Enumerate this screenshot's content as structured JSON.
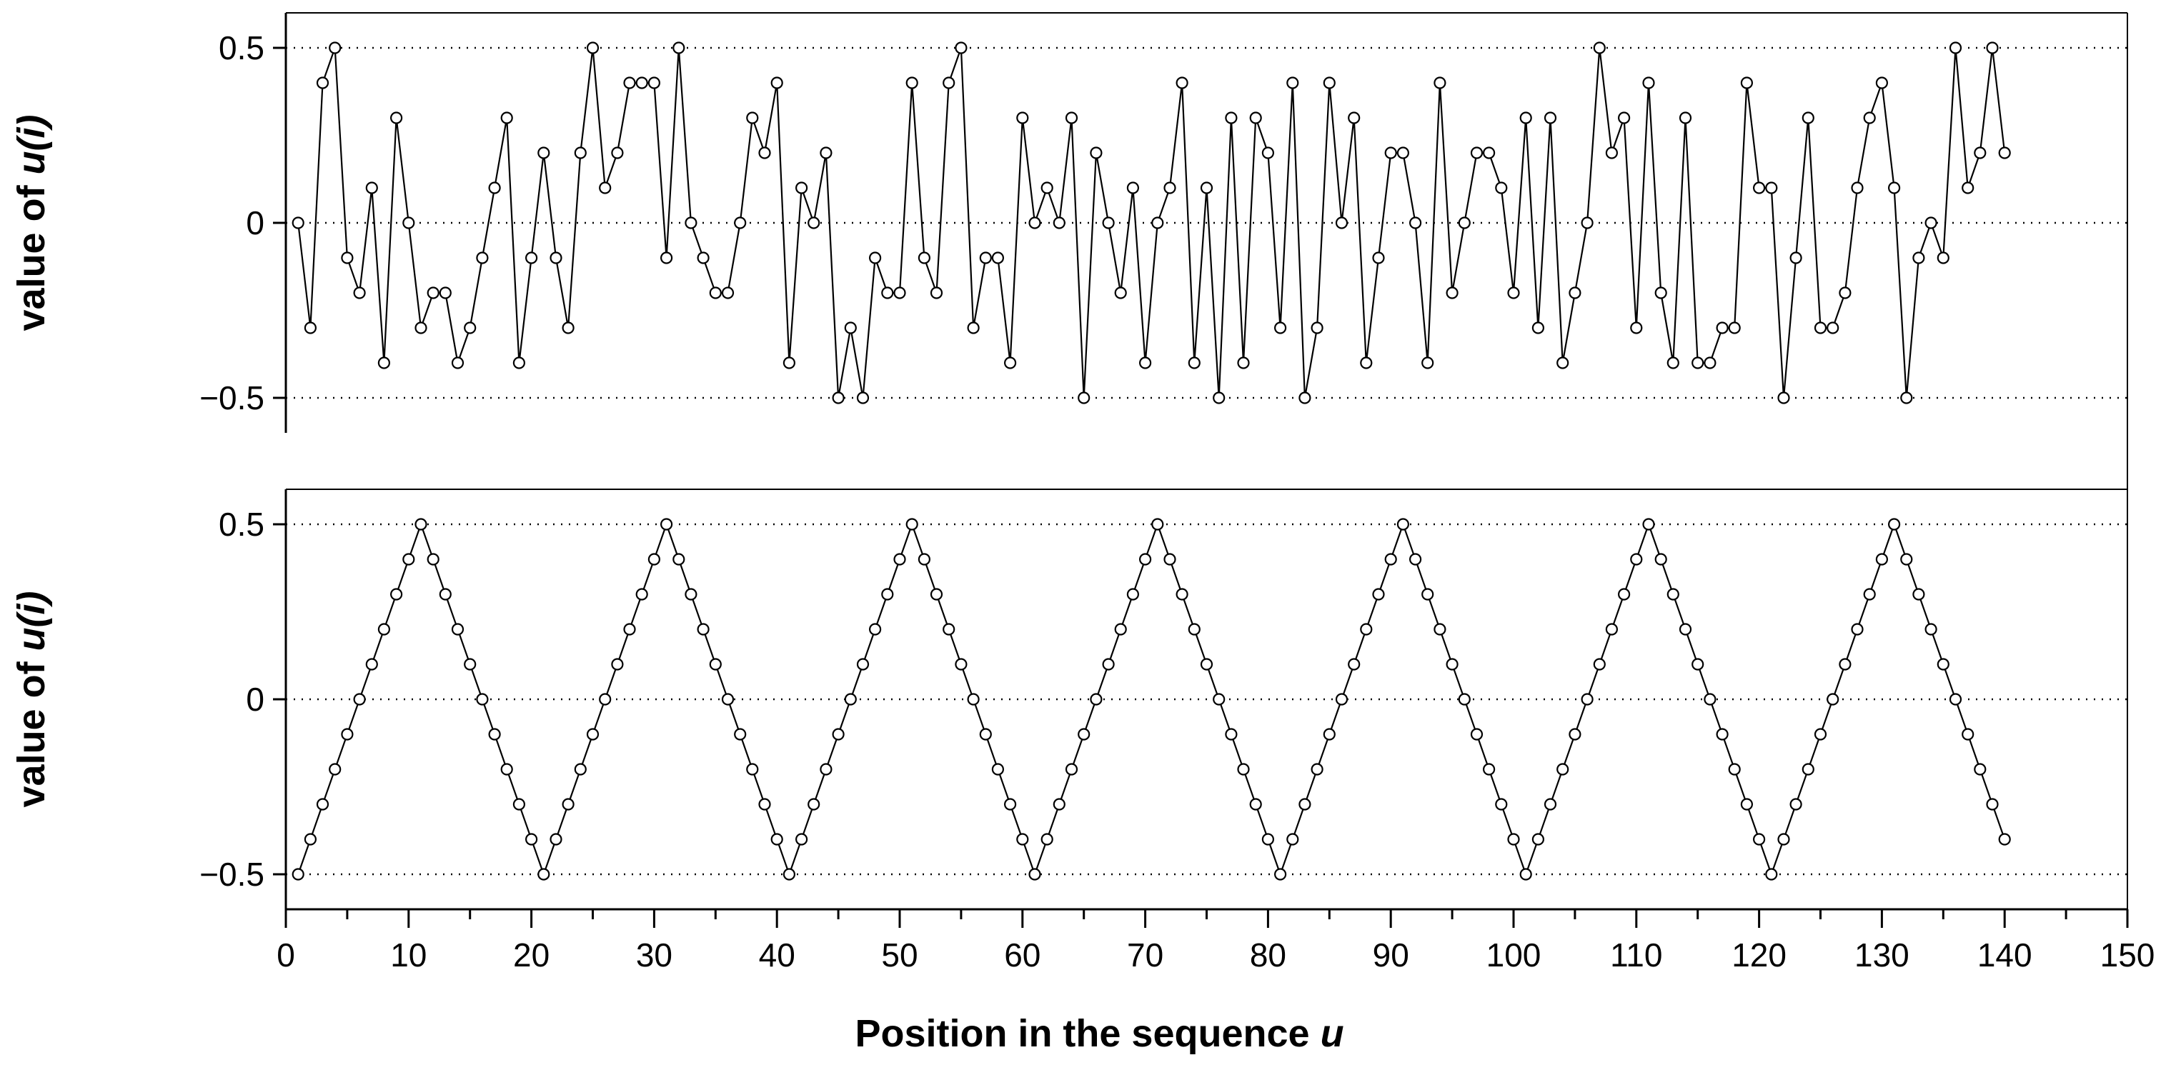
{
  "chart_data": [
    {
      "type": "line",
      "ylabel_prefix": "value of ",
      "ylabel_var": "u(i)",
      "ylim": [
        -0.6,
        0.6
      ],
      "yticks": [
        -0.5,
        0,
        0.5
      ],
      "ytick_labels": [
        "−0.5",
        "0",
        "0.5"
      ],
      "grid": "dotted horizontal at y ticks",
      "x": [
        1,
        2,
        3,
        4,
        5,
        6,
        7,
        8,
        9,
        10,
        11,
        12,
        13,
        14,
        15,
        16,
        17,
        18,
        19,
        20,
        21,
        22,
        23,
        24,
        25,
        26,
        27,
        28,
        29,
        30,
        31,
        32,
        33,
        34,
        35,
        36,
        37,
        38,
        39,
        40,
        41,
        42,
        43,
        44,
        45,
        46,
        47,
        48,
        49,
        50,
        51,
        52,
        53,
        54,
        55,
        56,
        57,
        58,
        59,
        60,
        61,
        62,
        63,
        64,
        65,
        66,
        67,
        68,
        69,
        70,
        71,
        72,
        73,
        74,
        75,
        76,
        77,
        78,
        79,
        80,
        81,
        82,
        83,
        84,
        85,
        86,
        87,
        88,
        89,
        90,
        91,
        92,
        93,
        94,
        95,
        96,
        97,
        98,
        99,
        100,
        101,
        102,
        103,
        104,
        105,
        106,
        107,
        108,
        109,
        110,
        111,
        112,
        113,
        114,
        115,
        116,
        117,
        118,
        119,
        120,
        121,
        122,
        123,
        124,
        125,
        126,
        127,
        128,
        129,
        130,
        131,
        132,
        133,
        134,
        135,
        136,
        137,
        138,
        139,
        140
      ],
      "values": [
        0,
        -0.3,
        0.4,
        0.5,
        -0.1,
        -0.2,
        0.1,
        -0.4,
        0.3,
        0,
        -0.3,
        -0.2,
        -0.2,
        -0.4,
        -0.3,
        -0.1,
        0.1,
        0.3,
        -0.4,
        -0.1,
        0.2,
        -0.1,
        -0.3,
        0.2,
        0.5,
        0.1,
        0.2,
        0.4,
        0.4,
        0.4,
        -0.1,
        0.5,
        0,
        -0.1,
        -0.2,
        -0.2,
        0,
        0.3,
        0.2,
        0.4,
        -0.4,
        0.1,
        0,
        0.2,
        -0.5,
        -0.3,
        -0.5,
        -0.1,
        -0.2,
        -0.2,
        0.4,
        -0.1,
        -0.2,
        0.4,
        0.5,
        -0.3,
        -0.1,
        -0.1,
        -0.4,
        0.3,
        0,
        0.1,
        0,
        0.3,
        -0.5,
        0.2,
        0,
        -0.2,
        0.1,
        -0.4,
        0,
        0.1,
        0.4,
        -0.4,
        0.1,
        -0.5,
        0.3,
        -0.4,
        0.3,
        0.2,
        -0.3,
        0.4,
        -0.5,
        -0.3,
        0.4,
        0,
        0.3,
        -0.4,
        -0.1,
        0.2,
        0.2,
        0,
        -0.4,
        0.4,
        -0.2,
        0,
        0.2,
        0.2,
        0.1,
        -0.2,
        0.3,
        -0.3,
        0.3,
        -0.4,
        -0.2,
        0,
        0.5,
        0.2,
        0.3,
        -0.3,
        0.4,
        -0.2,
        -0.4,
        0.3,
        -0.4,
        -0.4,
        -0.3,
        -0.3,
        0.4,
        0.1,
        0.1,
        -0.5,
        -0.1,
        0.3,
        -0.3,
        -0.3,
        -0.2,
        0.1,
        0.3,
        0.4,
        0.1,
        -0.5,
        -0.1,
        0,
        -0.1,
        0.5,
        0.1,
        0.2,
        0.5,
        0.2
      ]
    },
    {
      "type": "line",
      "ylabel_prefix": "value of ",
      "ylabel_var": "u(i)",
      "ylim": [
        -0.6,
        0.6
      ],
      "yticks": [
        -0.5,
        0,
        0.5
      ],
      "ytick_labels": [
        "−0.5",
        "0",
        "0.5"
      ],
      "grid": "dotted horizontal at y ticks",
      "x": [
        1,
        2,
        3,
        4,
        5,
        6,
        7,
        8,
        9,
        10,
        11,
        12,
        13,
        14,
        15,
        16,
        17,
        18,
        19,
        20,
        21,
        22,
        23,
        24,
        25,
        26,
        27,
        28,
        29,
        30,
        31,
        32,
        33,
        34,
        35,
        36,
        37,
        38,
        39,
        40,
        41,
        42,
        43,
        44,
        45,
        46,
        47,
        48,
        49,
        50,
        51,
        52,
        53,
        54,
        55,
        56,
        57,
        58,
        59,
        60,
        61,
        62,
        63,
        64,
        65,
        66,
        67,
        68,
        69,
        70,
        71,
        72,
        73,
        74,
        75,
        76,
        77,
        78,
        79,
        80,
        81,
        82,
        83,
        84,
        85,
        86,
        87,
        88,
        89,
        90,
        91,
        92,
        93,
        94,
        95,
        96,
        97,
        98,
        99,
        100,
        101,
        102,
        103,
        104,
        105,
        106,
        107,
        108,
        109,
        110,
        111,
        112,
        113,
        114,
        115,
        116,
        117,
        118,
        119,
        120,
        121,
        122,
        123,
        124,
        125,
        126,
        127,
        128,
        129,
        130,
        131,
        132,
        133,
        134,
        135,
        136,
        137,
        138,
        139,
        140
      ],
      "values": [
        -0.5,
        -0.4,
        -0.3,
        -0.2,
        -0.1,
        0,
        0.1,
        0.2,
        0.3,
        0.4,
        0.5,
        0.4,
        0.3,
        0.2,
        0.1,
        0,
        -0.1,
        -0.2,
        -0.3,
        -0.4,
        -0.5,
        -0.4,
        -0.3,
        -0.2,
        -0.1,
        0,
        0.1,
        0.2,
        0.3,
        0.4,
        0.5,
        0.4,
        0.3,
        0.2,
        0.1,
        0,
        -0.1,
        -0.2,
        -0.3,
        -0.4,
        -0.5,
        -0.4,
        -0.3,
        -0.2,
        -0.1,
        0,
        0.1,
        0.2,
        0.3,
        0.4,
        0.5,
        0.4,
        0.3,
        0.2,
        0.1,
        0,
        -0.1,
        -0.2,
        -0.3,
        -0.4,
        -0.5,
        -0.4,
        -0.3,
        -0.2,
        -0.1,
        0,
        0.1,
        0.2,
        0.3,
        0.4,
        0.5,
        0.4,
        0.3,
        0.2,
        0.1,
        0,
        -0.1,
        -0.2,
        -0.3,
        -0.4,
        -0.5,
        -0.4,
        -0.3,
        -0.2,
        -0.1,
        0,
        0.1,
        0.2,
        0.3,
        0.4,
        0.5,
        0.4,
        0.3,
        0.2,
        0.1,
        0,
        -0.1,
        -0.2,
        -0.3,
        -0.4,
        -0.5,
        -0.4,
        -0.3,
        -0.2,
        -0.1,
        0,
        0.1,
        0.2,
        0.3,
        0.4,
        0.5,
        0.4,
        0.3,
        0.2,
        0.1,
        0,
        -0.1,
        -0.2,
        -0.3,
        -0.4,
        -0.5,
        -0.4,
        -0.3,
        -0.2,
        -0.1,
        0,
        0.1,
        0.2,
        0.3,
        0.4,
        0.5,
        0.4,
        0.3,
        0.2,
        0.1,
        0,
        -0.1,
        -0.2,
        -0.3,
        -0.4
      ]
    }
  ],
  "shared_x_axis": {
    "xlabel_prefix": "Position in the sequence ",
    "xlabel_var": "u",
    "xlim": [
      0,
      150
    ],
    "xticks": [
      0,
      10,
      20,
      30,
      40,
      50,
      60,
      70,
      80,
      90,
      100,
      110,
      120,
      130,
      140,
      150
    ],
    "xtick_labels": [
      "0",
      "10",
      "20",
      "30",
      "40",
      "50",
      "60",
      "70",
      "80",
      "90",
      "100",
      "110",
      "120",
      "130",
      "140",
      "150"
    ],
    "minor_tick_step": 5
  },
  "colors": {
    "line": "#000000",
    "marker_fill": "#ffffff",
    "grid": "#000000",
    "background": "#ffffff"
  }
}
